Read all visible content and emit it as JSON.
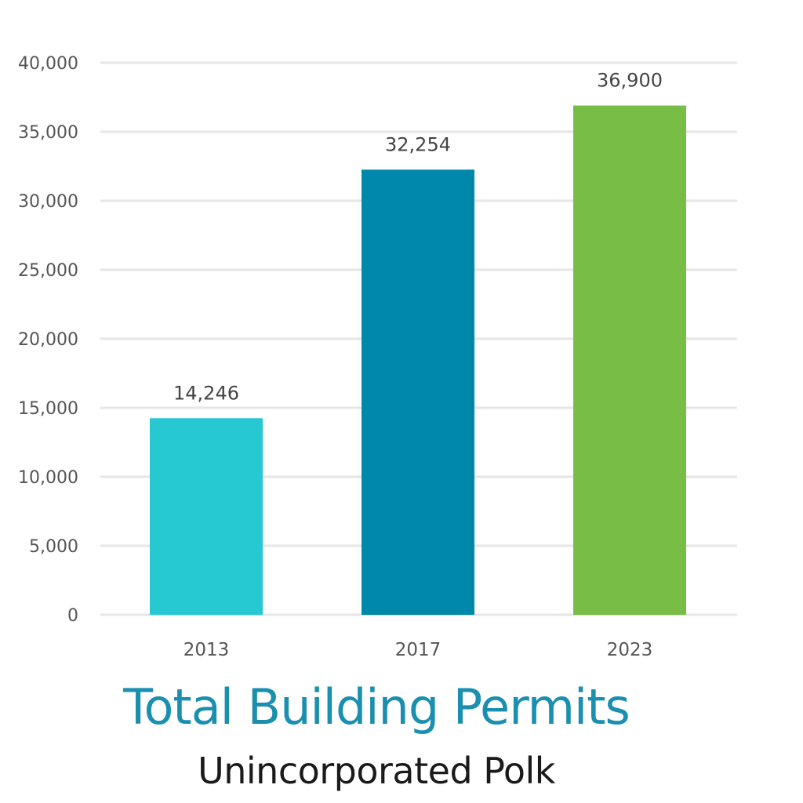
{
  "chart_data": {
    "type": "bar",
    "categories": [
      "2013",
      "2017",
      "2023"
    ],
    "values": [
      14246,
      32254,
      36900
    ],
    "data_labels": [
      "14,246",
      "32,254",
      "36,900"
    ],
    "colors": [
      "#26c8d2",
      "#0088ab",
      "#78be46"
    ],
    "title": "Total Building Permits",
    "subtitle": "Unincorporated Polk",
    "title_color": "#1a8fb0",
    "xlabel": "",
    "ylabel": "",
    "ylim": [
      0,
      40000
    ],
    "yticks": [
      0,
      5000,
      10000,
      15000,
      20000,
      25000,
      30000,
      35000,
      40000
    ],
    "ytick_labels": [
      "0",
      "5,000",
      "10,000",
      "15,000",
      "20,000",
      "25,000",
      "30,000",
      "35,000",
      "40,000"
    ],
    "grid": true,
    "legend": "none"
  }
}
